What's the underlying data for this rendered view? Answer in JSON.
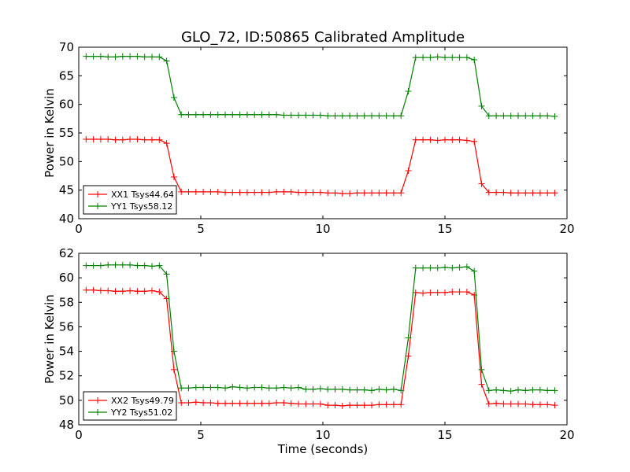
{
  "figure": {
    "title": "GLO_72, ID:50865 Calibrated Amplitude"
  },
  "chart_data": [
    {
      "type": "line",
      "title": "GLO_72, ID:50865 Calibrated Amplitude",
      "xlabel": "",
      "ylabel": "Power in Kelvin",
      "xlim": [
        0,
        20
      ],
      "ylim": [
        40,
        70
      ],
      "xticks": [
        0,
        5,
        10,
        15,
        20
      ],
      "yticks": [
        40,
        45,
        50,
        55,
        60,
        65,
        70
      ],
      "grid": false,
      "legend_position": "lower-left",
      "series": [
        {
          "name": "XX1 Tsys44.64",
          "color": "#ff0000",
          "marker": "plus",
          "x": [
            0.3,
            0.6,
            0.9,
            1.2,
            1.5,
            1.8,
            2.1,
            2.4,
            2.7,
            3.0,
            3.3,
            3.6,
            3.9,
            4.2,
            4.5,
            4.8,
            5.1,
            5.4,
            5.7,
            6.0,
            6.3,
            6.6,
            6.9,
            7.2,
            7.5,
            7.8,
            8.1,
            8.4,
            8.7,
            9.0,
            9.3,
            9.6,
            9.9,
            10.2,
            10.5,
            10.8,
            11.1,
            11.4,
            11.7,
            12.0,
            12.3,
            12.6,
            12.9,
            13.2,
            13.5,
            13.8,
            14.1,
            14.4,
            14.7,
            15.0,
            15.3,
            15.6,
            15.9,
            16.2,
            16.5,
            16.8,
            17.1,
            17.4,
            17.7,
            18.0,
            18.3,
            18.6,
            18.9,
            19.2,
            19.5
          ],
          "y": [
            53.9,
            53.9,
            53.9,
            53.9,
            53.8,
            53.8,
            53.9,
            53.9,
            53.8,
            53.8,
            53.8,
            53.2,
            47.3,
            44.7,
            44.7,
            44.7,
            44.7,
            44.7,
            44.7,
            44.6,
            44.6,
            44.6,
            44.6,
            44.6,
            44.6,
            44.6,
            44.7,
            44.7,
            44.7,
            44.6,
            44.6,
            44.6,
            44.6,
            44.5,
            44.5,
            44.4,
            44.4,
            44.5,
            44.5,
            44.5,
            44.5,
            44.5,
            44.5,
            44.5,
            48.4,
            53.8,
            53.8,
            53.8,
            53.7,
            53.8,
            53.8,
            53.8,
            53.7,
            53.5,
            46.1,
            44.6,
            44.6,
            44.6,
            44.5,
            44.5,
            44.5,
            44.5,
            44.5,
            44.5,
            44.5
          ]
        },
        {
          "name": "YY1 Tsys58.12",
          "color": "#008000",
          "marker": "plus",
          "x": [
            0.3,
            0.6,
            0.9,
            1.2,
            1.5,
            1.8,
            2.1,
            2.4,
            2.7,
            3.0,
            3.3,
            3.6,
            3.9,
            4.2,
            4.5,
            4.8,
            5.1,
            5.4,
            5.7,
            6.0,
            6.3,
            6.6,
            6.9,
            7.2,
            7.5,
            7.8,
            8.1,
            8.4,
            8.7,
            9.0,
            9.3,
            9.6,
            9.9,
            10.2,
            10.5,
            10.8,
            11.1,
            11.4,
            11.7,
            12.0,
            12.3,
            12.6,
            12.9,
            13.2,
            13.5,
            13.8,
            14.1,
            14.4,
            14.7,
            15.0,
            15.3,
            15.6,
            15.9,
            16.2,
            16.5,
            16.8,
            17.1,
            17.4,
            17.7,
            18.0,
            18.3,
            18.6,
            18.9,
            19.2,
            19.5
          ],
          "y": [
            68.4,
            68.4,
            68.4,
            68.3,
            68.3,
            68.4,
            68.4,
            68.4,
            68.3,
            68.3,
            68.3,
            67.6,
            61.2,
            58.2,
            58.2,
            58.2,
            58.2,
            58.2,
            58.2,
            58.2,
            58.2,
            58.2,
            58.2,
            58.2,
            58.2,
            58.2,
            58.2,
            58.1,
            58.1,
            58.1,
            58.1,
            58.1,
            58.1,
            58.0,
            58.0,
            58.0,
            58.0,
            58.0,
            58.0,
            58.0,
            58.0,
            58.0,
            58.0,
            58.0,
            62.3,
            68.2,
            68.2,
            68.2,
            68.3,
            68.2,
            68.2,
            68.2,
            68.2,
            67.8,
            59.7,
            58.0,
            58.0,
            58.0,
            58.0,
            58.0,
            58.0,
            58.0,
            58.0,
            58.0,
            57.9
          ]
        }
      ]
    },
    {
      "type": "line",
      "title": "",
      "xlabel": "Time (seconds)",
      "ylabel": "Power in Kelvin",
      "xlim": [
        0,
        20
      ],
      "ylim": [
        48,
        62
      ],
      "xticks": [
        0,
        5,
        10,
        15,
        20
      ],
      "yticks": [
        48,
        50,
        52,
        54,
        56,
        58,
        60,
        62
      ],
      "grid": false,
      "legend_position": "lower-left",
      "series": [
        {
          "name": "XX2 Tsys49.79",
          "color": "#ff0000",
          "marker": "plus",
          "x": [
            0.3,
            0.6,
            0.9,
            1.2,
            1.5,
            1.8,
            2.1,
            2.4,
            2.7,
            3.0,
            3.3,
            3.6,
            3.9,
            4.2,
            4.5,
            4.8,
            5.1,
            5.4,
            5.7,
            6.0,
            6.3,
            6.6,
            6.9,
            7.2,
            7.5,
            7.8,
            8.1,
            8.4,
            8.7,
            9.0,
            9.3,
            9.6,
            9.9,
            10.2,
            10.5,
            10.8,
            11.1,
            11.4,
            11.7,
            12.0,
            12.3,
            12.6,
            12.9,
            13.2,
            13.5,
            13.8,
            14.1,
            14.4,
            14.7,
            15.0,
            15.3,
            15.6,
            15.9,
            16.2,
            16.5,
            16.8,
            17.1,
            17.4,
            17.7,
            18.0,
            18.3,
            18.6,
            18.9,
            19.2,
            19.5
          ],
          "y": [
            59.0,
            59.0,
            58.95,
            58.95,
            58.9,
            58.9,
            58.95,
            58.9,
            58.9,
            58.95,
            58.85,
            58.3,
            52.5,
            49.8,
            49.8,
            49.85,
            49.8,
            49.8,
            49.75,
            49.75,
            49.75,
            49.75,
            49.75,
            49.75,
            49.75,
            49.75,
            49.8,
            49.8,
            49.75,
            49.7,
            49.7,
            49.7,
            49.7,
            49.6,
            49.6,
            49.55,
            49.6,
            49.6,
            49.6,
            49.6,
            49.65,
            49.65,
            49.65,
            49.65,
            53.6,
            58.8,
            58.75,
            58.8,
            58.8,
            58.8,
            58.85,
            58.85,
            58.85,
            58.6,
            51.3,
            49.7,
            49.75,
            49.7,
            49.7,
            49.7,
            49.7,
            49.65,
            49.65,
            49.65,
            49.6
          ]
        },
        {
          "name": "YY2 Tsys51.02",
          "color": "#008000",
          "marker": "plus",
          "x": [
            0.3,
            0.6,
            0.9,
            1.2,
            1.5,
            1.8,
            2.1,
            2.4,
            2.7,
            3.0,
            3.3,
            3.6,
            3.9,
            4.2,
            4.5,
            4.8,
            5.1,
            5.4,
            5.7,
            6.0,
            6.3,
            6.6,
            6.9,
            7.2,
            7.5,
            7.8,
            8.1,
            8.4,
            8.7,
            9.0,
            9.3,
            9.6,
            9.9,
            10.2,
            10.5,
            10.8,
            11.1,
            11.4,
            11.7,
            12.0,
            12.3,
            12.6,
            12.9,
            13.2,
            13.5,
            13.8,
            14.1,
            14.4,
            14.7,
            15.0,
            15.3,
            15.6,
            15.9,
            16.2,
            16.5,
            16.8,
            17.1,
            17.4,
            17.7,
            18.0,
            18.3,
            18.6,
            18.9,
            19.2,
            19.5
          ],
          "y": [
            61.0,
            61.0,
            61.0,
            61.05,
            61.05,
            61.05,
            61.05,
            61.0,
            61.0,
            60.95,
            61.0,
            60.3,
            54.0,
            51.0,
            51.0,
            51.05,
            51.05,
            51.05,
            51.05,
            51.0,
            51.1,
            51.05,
            51.0,
            51.05,
            51.05,
            51.0,
            51.0,
            51.05,
            51.0,
            51.05,
            50.9,
            50.9,
            50.95,
            50.9,
            50.9,
            50.9,
            50.85,
            50.85,
            50.85,
            50.8,
            50.9,
            50.85,
            50.9,
            50.8,
            55.1,
            60.8,
            60.8,
            60.8,
            60.8,
            60.85,
            60.8,
            60.85,
            60.9,
            60.55,
            52.5,
            50.8,
            50.85,
            50.8,
            50.75,
            50.85,
            50.8,
            50.85,
            50.85,
            50.8,
            50.8
          ]
        }
      ]
    }
  ]
}
